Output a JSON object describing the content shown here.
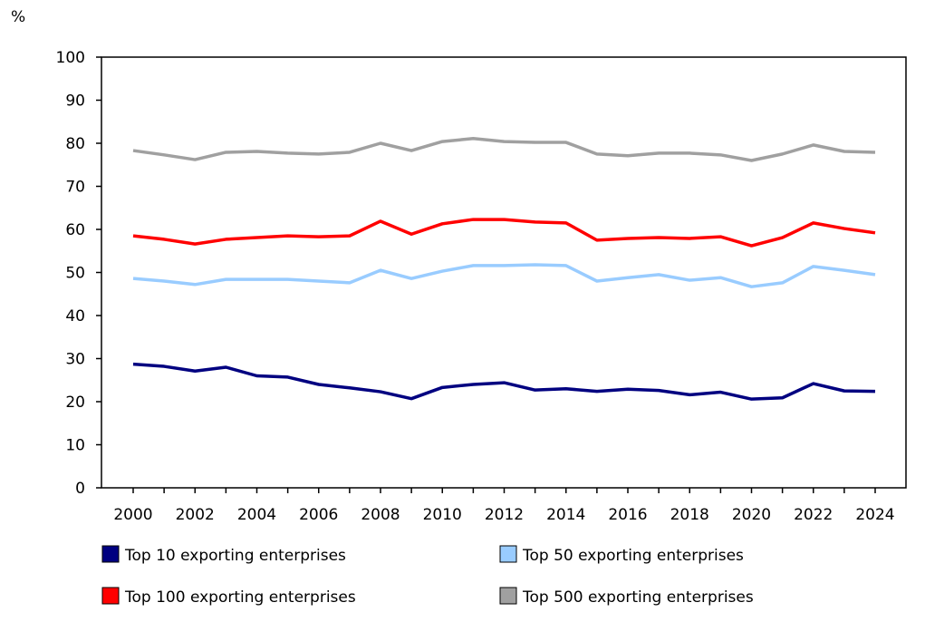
{
  "chart_data": {
    "type": "line",
    "ylabel": "%",
    "ylim": [
      0,
      100
    ],
    "yticks": [
      "0",
      "10",
      "20",
      "30",
      "40",
      "50",
      "60",
      "70",
      "80",
      "90",
      "100"
    ],
    "x": [
      2000,
      2001,
      2002,
      2003,
      2004,
      2005,
      2006,
      2007,
      2008,
      2009,
      2010,
      2011,
      2012,
      2013,
      2014,
      2015,
      2016,
      2017,
      2018,
      2019,
      2020,
      2021,
      2022,
      2023,
      2024
    ],
    "xticks": [
      "2000",
      "2002",
      "2004",
      "2006",
      "2008",
      "2010",
      "2012",
      "2014",
      "2016",
      "2018",
      "2020",
      "2022",
      "2024"
    ],
    "grid": false,
    "legend_position": "bottom",
    "series": [
      {
        "name": "Top 10 exporting enterprises",
        "color": "#000080",
        "values": [
          28.7,
          28.2,
          27.1,
          28.0,
          26.0,
          25.7,
          24.0,
          23.2,
          22.3,
          20.7,
          23.3,
          24.0,
          24.4,
          22.7,
          23.0,
          22.4,
          22.9,
          22.6,
          21.6,
          22.2,
          20.6,
          20.9,
          24.2,
          22.5,
          22.4
        ]
      },
      {
        "name": "Top 50 exporting enterprises",
        "color": "#99CCFF",
        "values": [
          48.6,
          48.0,
          47.2,
          48.4,
          48.4,
          48.4,
          48.0,
          47.6,
          50.5,
          48.6,
          50.3,
          51.6,
          51.6,
          51.8,
          51.6,
          48.0,
          48.8,
          49.5,
          48.2,
          48.8,
          46.7,
          47.6,
          51.4,
          50.5,
          49.5
        ]
      },
      {
        "name": "Top 100 exporting enterprises",
        "color": "#FF0000",
        "values": [
          58.5,
          57.7,
          56.6,
          57.7,
          58.1,
          58.5,
          58.3,
          58.5,
          61.9,
          58.9,
          61.3,
          62.3,
          62.3,
          61.7,
          61.5,
          57.5,
          57.9,
          58.1,
          57.9,
          58.3,
          56.2,
          58.1,
          61.5,
          60.2,
          59.2
        ]
      },
      {
        "name": "Top 500 exporting enterprises",
        "color": "#A0A0A0",
        "values": [
          78.3,
          77.3,
          76.2,
          77.9,
          78.1,
          77.7,
          77.5,
          77.9,
          80.0,
          78.3,
          80.4,
          81.1,
          80.4,
          80.2,
          80.2,
          77.5,
          77.1,
          77.7,
          77.7,
          77.3,
          76.0,
          77.5,
          79.6,
          78.1,
          77.9
        ]
      }
    ]
  }
}
